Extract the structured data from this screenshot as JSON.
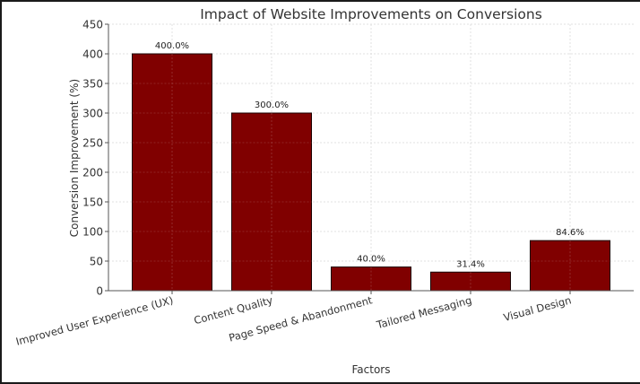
{
  "chart_data": {
    "type": "bar",
    "title": "Impact of Website Improvements on Conversions",
    "xlabel": "Factors",
    "ylabel": "Conversion Improvement (%)",
    "categories": [
      "Improved User Experience (UX)",
      "Content Quality",
      "Page Speed & Abandonment",
      "Tailored Messaging",
      "Visual Design"
    ],
    "values": [
      400.0,
      300.0,
      40.0,
      31.4,
      84.6
    ],
    "data_labels": [
      "400.0%",
      "300.0%",
      "40.0%",
      "31.4%",
      "84.6%"
    ],
    "ylim": [
      0,
      450
    ],
    "yticks": [
      0,
      50,
      100,
      150,
      200,
      250,
      300,
      350,
      400,
      450
    ],
    "grid": true,
    "legend": null,
    "colors": {
      "bar": "#800000",
      "bar_edge": "#1a0000",
      "grid": "#d9d9d9",
      "text": "#333333"
    }
  }
}
